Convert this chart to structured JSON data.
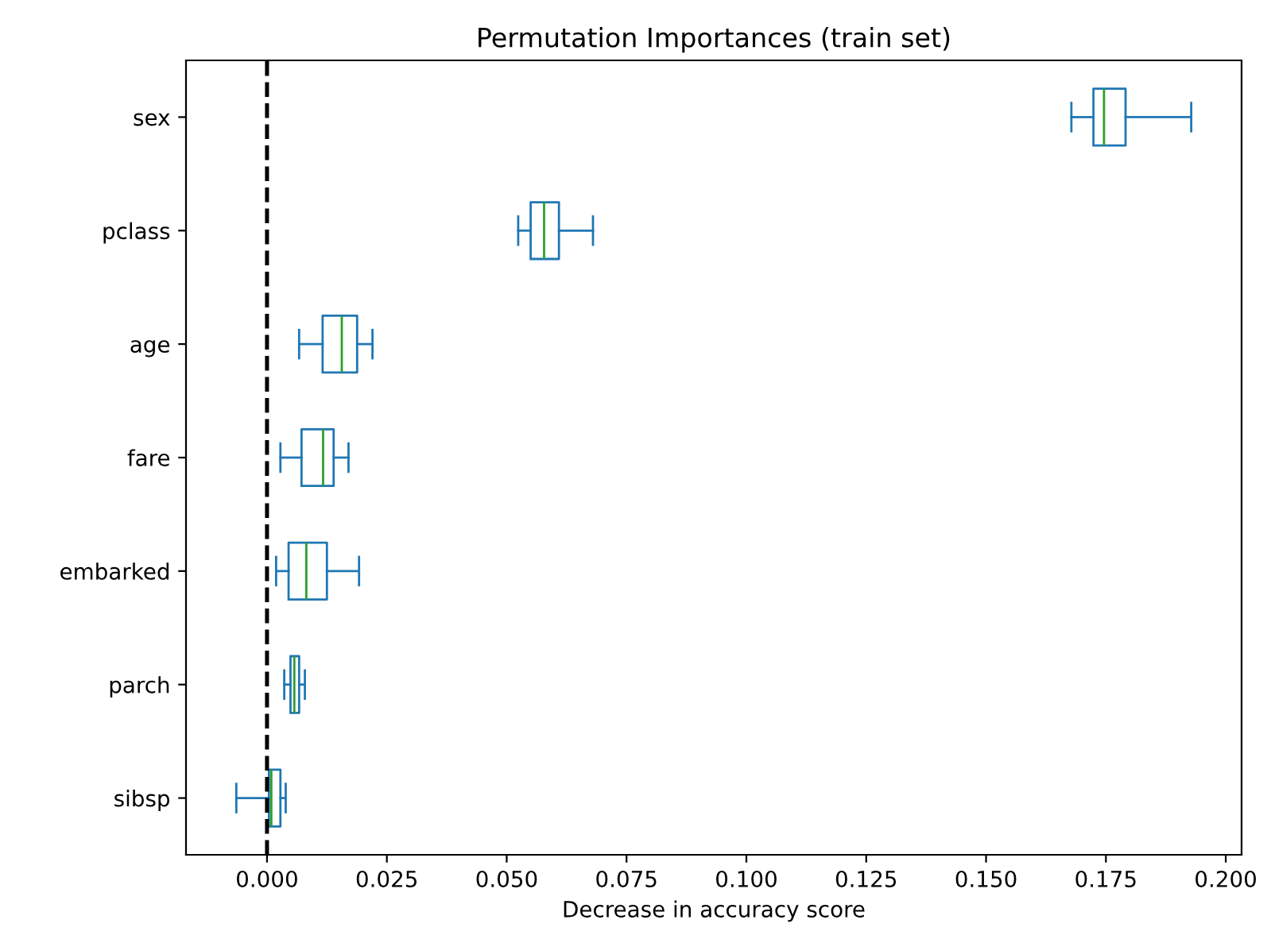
{
  "chart_data": {
    "type": "box",
    "title": "Permutation Importances (train set)",
    "xlabel": "Decrease in accuracy score",
    "orientation": "horizontal",
    "categories": [
      "sex",
      "pclass",
      "age",
      "fare",
      "embarked",
      "parch",
      "sibsp"
    ],
    "color": "#1f77b4",
    "boxes": [
      {
        "low": 0.1678,
        "q1": 0.1724,
        "median": 0.1746,
        "q3": 0.1791,
        "high": 0.1928
      },
      {
        "low": 0.0524,
        "q1": 0.055,
        "median": 0.0578,
        "q3": 0.0609,
        "high": 0.068
      },
      {
        "low": 0.0067,
        "q1": 0.0116,
        "median": 0.0156,
        "q3": 0.0188,
        "high": 0.022
      },
      {
        "low": 0.0028,
        "q1": 0.0072,
        "median": 0.0117,
        "q3": 0.0139,
        "high": 0.017
      },
      {
        "low": 0.0019,
        "q1": 0.0045,
        "median": 0.0082,
        "q3": 0.0125,
        "high": 0.0192
      },
      {
        "low": 0.0036,
        "q1": 0.0049,
        "median": 0.0057,
        "q3": 0.0067,
        "high": 0.0079
      },
      {
        "low": -0.0064,
        "q1": 0.0004,
        "median": 0.0009,
        "q3": 0.0028,
        "high": 0.0039
      }
    ],
    "xlim": [
      -0.0169,
      0.2033
    ],
    "xticks": [
      {
        "value": 0,
        "label": "0.000"
      },
      {
        "value": 0.025,
        "label": "0.025"
      },
      {
        "value": 0.05,
        "label": "0.050"
      },
      {
        "value": 0.075,
        "label": "0.075"
      },
      {
        "value": 0.1,
        "label": "0.100"
      },
      {
        "value": 0.125,
        "label": "0.125"
      },
      {
        "value": 0.15,
        "label": "0.150"
      },
      {
        "value": 0.175,
        "label": "0.175"
      },
      {
        "value": 0.2,
        "label": "0.200"
      }
    ],
    "ref_lines": [
      {
        "axis": "x",
        "value": 0,
        "color": "#000000",
        "line_style": "dashed"
      }
    ],
    "grid": false
  }
}
